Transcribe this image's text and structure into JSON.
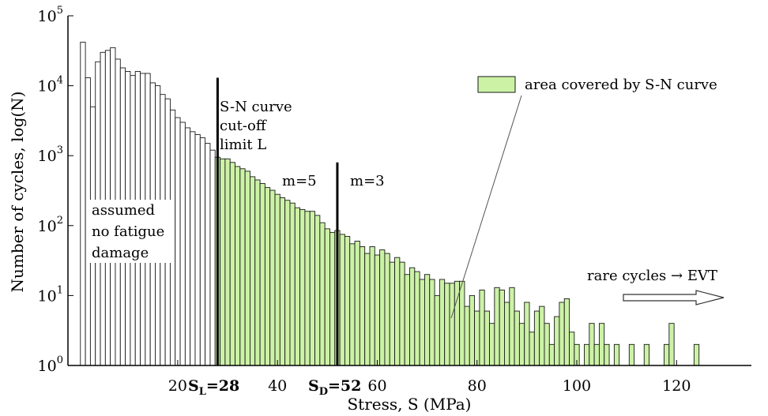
{
  "chart_data": {
    "type": "bar",
    "title": "",
    "xlabel": "Stress, S (MPa)",
    "ylabel": "Number of cycles, log(N)",
    "xlim": [
      -2,
      135
    ],
    "ylim_log10": [
      0,
      5
    ],
    "y_scale": "log",
    "bin_width": 1,
    "x_ticks": [
      "20",
      "40",
      "60",
      "80",
      "100",
      "120"
    ],
    "y_ticks": [
      {
        "base": "10",
        "exp": "0"
      },
      {
        "base": "10",
        "exp": "1"
      },
      {
        "base": "10",
        "exp": "2"
      },
      {
        "base": "10",
        "exp": "3"
      },
      {
        "base": "10",
        "exp": "4"
      },
      {
        "base": "10",
        "exp": "5"
      }
    ],
    "fill_start": 28,
    "colors": {
      "unfilled": "#ffffff",
      "filled": "#ccf2a6",
      "edge": "#1a1a1a",
      "axis": "#000000"
    },
    "series": [
      {
        "bins": [
          [
            1,
            42000
          ],
          [
            2,
            13000
          ],
          [
            3,
            5000
          ],
          [
            4,
            22000
          ],
          [
            5,
            30000
          ],
          [
            6,
            32000
          ],
          [
            7,
            35000
          ],
          [
            8,
            24000
          ],
          [
            9,
            18000
          ],
          [
            10,
            16000
          ],
          [
            11,
            14000
          ],
          [
            12,
            16000
          ],
          [
            13,
            15000
          ],
          [
            14,
            15000
          ],
          [
            15,
            11000
          ],
          [
            16,
            10000
          ],
          [
            17,
            7500
          ],
          [
            18,
            6500
          ],
          [
            19,
            4500
          ],
          [
            20,
            3500
          ],
          [
            21,
            3000
          ],
          [
            22,
            2500
          ],
          [
            23,
            2200
          ],
          [
            24,
            2000
          ],
          [
            25,
            1800
          ],
          [
            26,
            1500
          ],
          [
            27,
            1200
          ],
          [
            28,
            950
          ],
          [
            29,
            900
          ],
          [
            30,
            900
          ],
          [
            31,
            800
          ],
          [
            32,
            700
          ],
          [
            33,
            650
          ],
          [
            34,
            600
          ],
          [
            35,
            500
          ],
          [
            36,
            450
          ],
          [
            37,
            400
          ],
          [
            38,
            350
          ],
          [
            39,
            320
          ],
          [
            40,
            280
          ],
          [
            41,
            250
          ],
          [
            42,
            230
          ],
          [
            43,
            210
          ],
          [
            44,
            180
          ],
          [
            45,
            170
          ],
          [
            46,
            160
          ],
          [
            47,
            160
          ],
          [
            48,
            140
          ],
          [
            49,
            110
          ],
          [
            50,
            90
          ],
          [
            51,
            80
          ],
          [
            52,
            85
          ],
          [
            53,
            75
          ],
          [
            54,
            70
          ],
          [
            55,
            55
          ],
          [
            56,
            60
          ],
          [
            57,
            50
          ],
          [
            58,
            40
          ],
          [
            59,
            50
          ],
          [
            60,
            38
          ],
          [
            61,
            45
          ],
          [
            62,
            40
          ],
          [
            63,
            30
          ],
          [
            64,
            35
          ],
          [
            65,
            30
          ],
          [
            66,
            20
          ],
          [
            67,
            25
          ],
          [
            68,
            22
          ],
          [
            69,
            17
          ],
          [
            70,
            20
          ],
          [
            71,
            17
          ],
          [
            72,
            10
          ],
          [
            73,
            17
          ],
          [
            74,
            15
          ],
          [
            75,
            15
          ],
          [
            76,
            16
          ],
          [
            77,
            16
          ],
          [
            78,
            7
          ],
          [
            79,
            10
          ],
          [
            80,
            6
          ],
          [
            81,
            12
          ],
          [
            82,
            6
          ],
          [
            83,
            4
          ],
          [
            84,
            13
          ],
          [
            85,
            12
          ],
          [
            86,
            8
          ],
          [
            87,
            13
          ],
          [
            88,
            6
          ],
          [
            89,
            4
          ],
          [
            90,
            8
          ],
          [
            91,
            3
          ],
          [
            92,
            6
          ],
          [
            93,
            7
          ],
          [
            94,
            4
          ],
          [
            95,
            2
          ],
          [
            96,
            5
          ],
          [
            97,
            8
          ],
          [
            98,
            9
          ],
          [
            99,
            3
          ],
          [
            100,
            2
          ],
          [
            102,
            2
          ],
          [
            103,
            4
          ],
          [
            104,
            2
          ],
          [
            105,
            4
          ],
          [
            106,
            2
          ],
          [
            107,
            1
          ],
          [
            108,
            2
          ],
          [
            111,
            2
          ],
          [
            114,
            2
          ],
          [
            118,
            2
          ],
          [
            119,
            4
          ],
          [
            124,
            2
          ]
        ]
      }
    ],
    "annotations": {
      "left_note": [
        "assumed",
        "no fatigue",
        "damage"
      ],
      "sn_note": [
        "S-N curve",
        "cut-off",
        "limit L"
      ],
      "m5": "m=5",
      "m3": "m=3",
      "legend": "area covered by S-N curve",
      "rare": "rare cycles",
      "evt_arrow": "→",
      "evt": "EVT",
      "sl_main": "S",
      "sl_sub": "L",
      "sl_value": "=28",
      "sd_main": "S",
      "sd_sub": "D",
      "sd_value": "=52"
    },
    "vertical_lines": [
      {
        "x": 28,
        "y_top": 13000
      },
      {
        "x": 52,
        "y_top": 800
      }
    ]
  }
}
